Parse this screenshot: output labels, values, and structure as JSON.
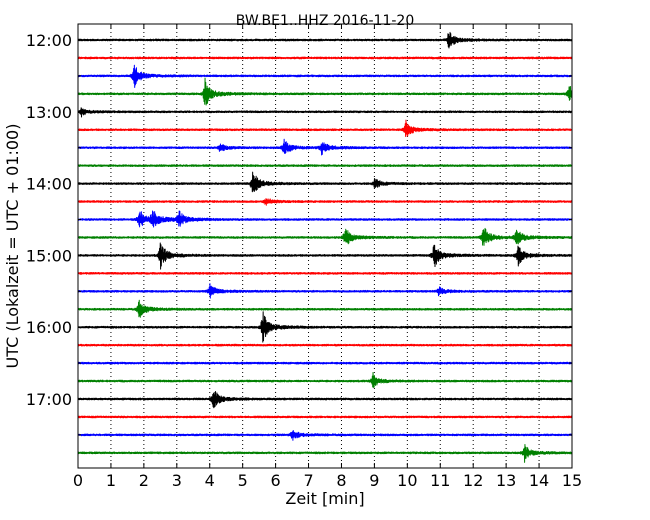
{
  "chart_data": {
    "type": "line",
    "title": "BW.BE1..HHZ 2016-11-20",
    "xlabel": "Zeit  [min]",
    "ylabel": "UTC (Lokalzeit = UTC + 01:00)",
    "xlim": [
      0,
      15
    ],
    "x_ticks": [
      "0",
      "1",
      "2",
      "3",
      "4",
      "5",
      "6",
      "7",
      "8",
      "9",
      "10",
      "11",
      "12",
      "13",
      "14",
      "15"
    ],
    "y_tick_labels": [
      "12:00",
      "13:00",
      "14:00",
      "15:00",
      "16:00",
      "17:00"
    ],
    "grid": "vertical dotted",
    "colors": [
      "#000000",
      "#ff0000",
      "#0000ff",
      "#008000"
    ],
    "traces": [
      {
        "start": "12:00",
        "color": "#000000",
        "events": [
          {
            "t": 11.25,
            "amp": 9
          }
        ]
      },
      {
        "start": "12:15",
        "color": "#ff0000",
        "events": []
      },
      {
        "start": "12:30",
        "color": "#0000ff",
        "events": [
          {
            "t": 1.7,
            "amp": 11
          }
        ]
      },
      {
        "start": "12:45",
        "color": "#008000",
        "events": [
          {
            "t": 3.85,
            "amp": 14
          },
          {
            "t": 14.9,
            "amp": 8
          }
        ]
      },
      {
        "start": "13:00",
        "color": "#000000",
        "events": [
          {
            "t": 0.1,
            "amp": 4
          }
        ]
      },
      {
        "start": "13:15",
        "color": "#ff0000",
        "events": [
          {
            "t": 9.95,
            "amp": 8
          }
        ]
      },
      {
        "start": "13:30",
        "color": "#0000ff",
        "events": [
          {
            "t": 4.3,
            "amp": 4
          },
          {
            "t": 6.25,
            "amp": 8
          },
          {
            "t": 7.4,
            "amp": 7
          }
        ]
      },
      {
        "start": "13:45",
        "color": "#008000",
        "events": []
      },
      {
        "start": "14:00",
        "color": "#000000",
        "events": [
          {
            "t": 5.3,
            "amp": 12
          },
          {
            "t": 9.0,
            "amp": 5
          }
        ]
      },
      {
        "start": "14:15",
        "color": "#ff0000",
        "events": [
          {
            "t": 5.7,
            "amp": 4
          }
        ]
      },
      {
        "start": "14:30",
        "color": "#0000ff",
        "events": [
          {
            "t": 1.85,
            "amp": 10
          },
          {
            "t": 2.25,
            "amp": 9
          },
          {
            "t": 3.05,
            "amp": 8
          }
        ]
      },
      {
        "start": "14:45",
        "color": "#008000",
        "events": [
          {
            "t": 8.1,
            "amp": 10
          },
          {
            "t": 12.3,
            "amp": 11
          },
          {
            "t": 13.3,
            "amp": 8
          }
        ]
      },
      {
        "start": "15:00",
        "color": "#000000",
        "events": [
          {
            "t": 2.5,
            "amp": 13
          },
          {
            "t": 10.8,
            "amp": 12
          },
          {
            "t": 13.35,
            "amp": 10
          }
        ]
      },
      {
        "start": "15:15",
        "color": "#ff0000",
        "events": []
      },
      {
        "start": "15:30",
        "color": "#0000ff",
        "events": [
          {
            "t": 4.0,
            "amp": 7
          },
          {
            "t": 10.95,
            "amp": 4
          }
        ]
      },
      {
        "start": "15:45",
        "color": "#008000",
        "events": [
          {
            "t": 1.85,
            "amp": 9
          }
        ]
      },
      {
        "start": "16:00",
        "color": "#000000",
        "events": [
          {
            "t": 5.6,
            "amp": 15
          }
        ]
      },
      {
        "start": "16:15",
        "color": "#ff0000",
        "events": []
      },
      {
        "start": "16:30",
        "color": "#0000ff",
        "events": []
      },
      {
        "start": "16:45",
        "color": "#008000",
        "events": [
          {
            "t": 8.95,
            "amp": 7
          }
        ]
      },
      {
        "start": "17:00",
        "color": "#000000",
        "events": [
          {
            "t": 4.1,
            "amp": 10
          }
        ]
      },
      {
        "start": "17:15",
        "color": "#ff0000",
        "events": []
      },
      {
        "start": "17:30",
        "color": "#0000ff",
        "events": [
          {
            "t": 6.5,
            "amp": 5
          }
        ]
      },
      {
        "start": "17:45",
        "color": "#008000",
        "events": [
          {
            "t": 13.55,
            "amp": 8
          }
        ]
      }
    ]
  }
}
